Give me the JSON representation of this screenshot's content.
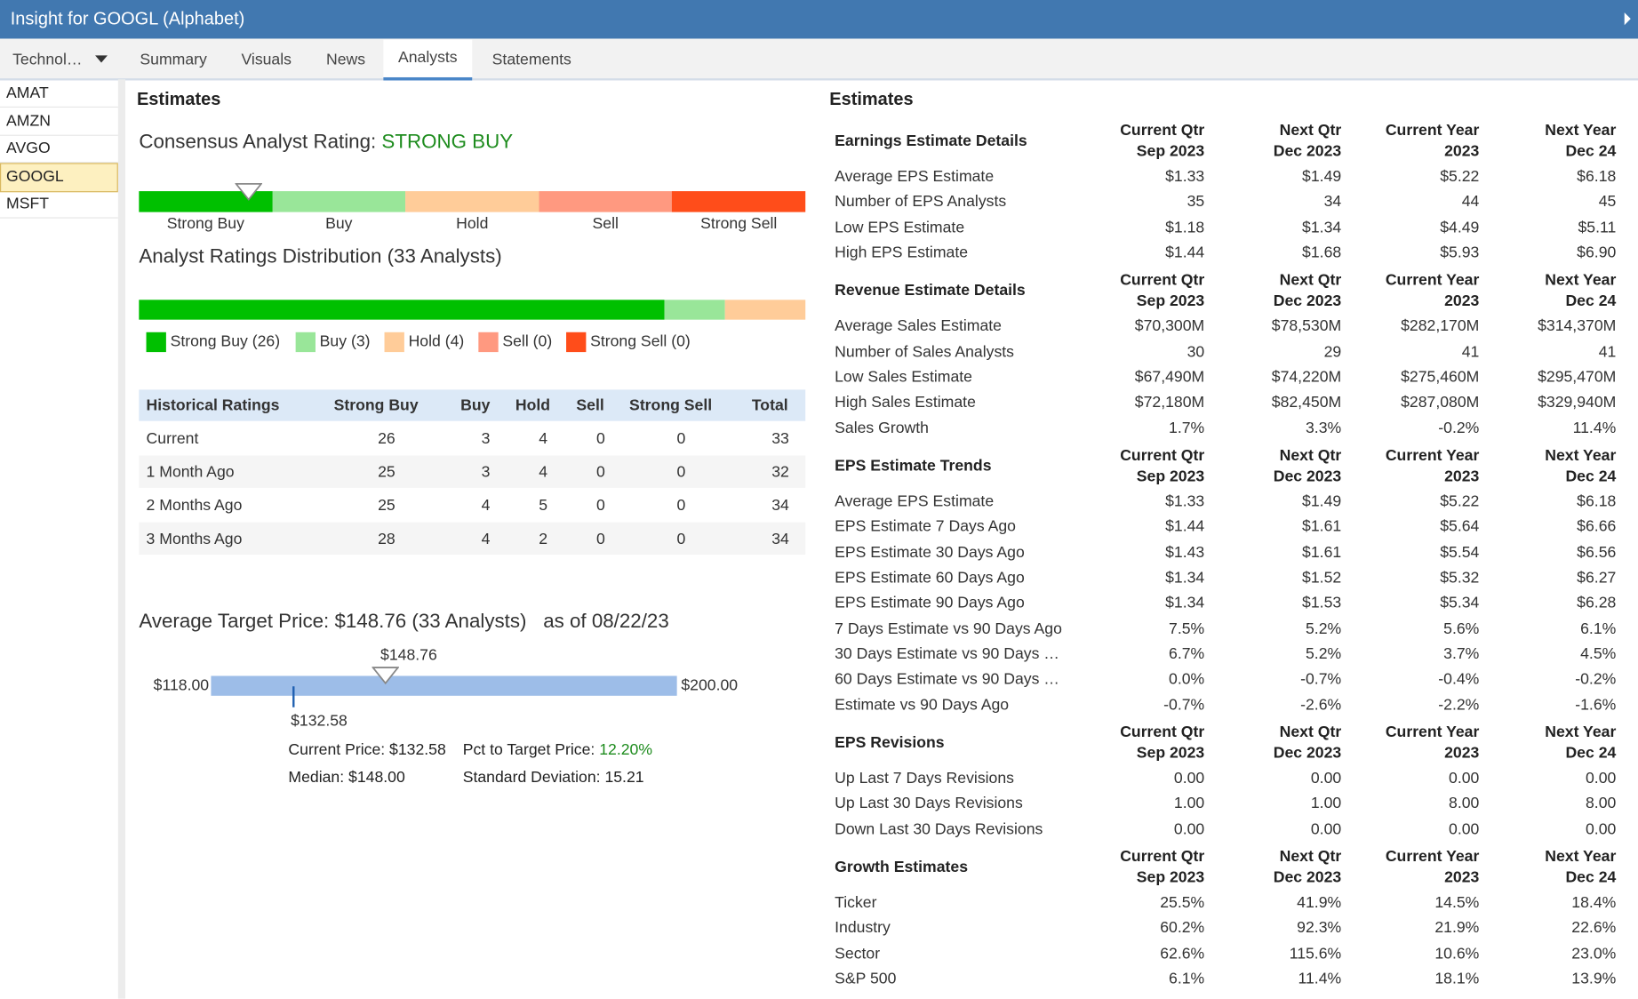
{
  "header": {
    "title": "Insight for GOOGL (Alphabet)"
  },
  "sidebar": {
    "dropdown": "Technol…",
    "tickers": [
      "AMAT",
      "AMZN",
      "AVGO",
      "GOOGL",
      "MSFT"
    ],
    "selected": 3
  },
  "tabs": {
    "items": [
      "Summary",
      "Visuals",
      "News",
      "Analysts",
      "Statements"
    ],
    "active": 3
  },
  "left": {
    "title": "Estimates",
    "consensus": {
      "label": "Consensus Analyst Rating:",
      "value": "STRONG BUY"
    },
    "scale": [
      "Strong Buy",
      "Buy",
      "Hold",
      "Sell",
      "Strong Sell"
    ],
    "colors": [
      "#00c000",
      "#99e699",
      "#ffcc99",
      "#ff9980",
      "#ff4d1a"
    ],
    "distribution": {
      "title": "Analyst Ratings Distribution (33 Analysts)",
      "counts": [
        26,
        3,
        4,
        0,
        0
      ],
      "legend": [
        "Strong Buy (26)",
        "Buy (3)",
        "Hold (4)",
        "Sell (0)",
        "Strong Sell (0)"
      ]
    },
    "historical": {
      "header": [
        "Historical Ratings",
        "Strong Buy",
        "Buy",
        "Hold",
        "Sell",
        "Strong Sell",
        "Total"
      ],
      "rows": [
        [
          "Current",
          "26",
          "3",
          "4",
          "0",
          "0",
          "33"
        ],
        [
          "1 Month Ago",
          "25",
          "3",
          "4",
          "0",
          "0",
          "32"
        ],
        [
          "2 Months Ago",
          "25",
          "4",
          "5",
          "0",
          "0",
          "34"
        ],
        [
          "3 Months Ago",
          "28",
          "4",
          "2",
          "0",
          "0",
          "34"
        ]
      ]
    },
    "target": {
      "title": "Average Target Price: $148.76 (33 Analysts)",
      "as_of": "as of 08/22/23",
      "low": {
        "value": 118,
        "label": "$118.00"
      },
      "high": {
        "value": 200,
        "label": "$200.00"
      },
      "average": {
        "value": 148.76,
        "label": "$148.76"
      },
      "current": {
        "value": 132.58,
        "label": "$132.58"
      },
      "current_price": "Current Price: $132.58",
      "pct_label": "Pct to Target Price:",
      "pct_value": "12.20%",
      "median": "Median: $148.00",
      "std": "Standard Deviation: 15.21"
    }
  },
  "right": {
    "title": "Estimates",
    "sections": [
      {
        "title": "Earnings Estimate Details",
        "columns": [
          [
            "Current Qtr",
            "Sep 2023"
          ],
          [
            "Next Qtr",
            "Dec 2023"
          ],
          [
            "Current Year",
            "2023"
          ],
          [
            "Next Year",
            "Dec 24"
          ]
        ],
        "rows": [
          [
            "Average EPS Estimate",
            "$1.33",
            "$1.49",
            "$5.22",
            "$6.18"
          ],
          [
            "Number of EPS Analysts",
            "35",
            "34",
            "44",
            "45"
          ],
          [
            "Low EPS Estimate",
            "$1.18",
            "$1.34",
            "$4.49",
            "$5.11"
          ],
          [
            "High EPS Estimate",
            "$1.44",
            "$1.68",
            "$5.93",
            "$6.90"
          ]
        ]
      },
      {
        "title": "Revenue Estimate Details",
        "columns": [
          [
            "Current Qtr",
            "Sep 2023"
          ],
          [
            "Next Qtr",
            "Dec 2023"
          ],
          [
            "Current Year",
            "2023"
          ],
          [
            "Next Year",
            "Dec 24"
          ]
        ],
        "rows": [
          [
            "Average Sales Estimate",
            "$70,300M",
            "$78,530M",
            "$282,170M",
            "$314,370M"
          ],
          [
            "Number of Sales Analysts",
            "30",
            "29",
            "41",
            "41"
          ],
          [
            "Low Sales Estimate",
            "$67,490M",
            "$74,220M",
            "$275,460M",
            "$295,470M"
          ],
          [
            "High Sales Estimate",
            "$72,180M",
            "$82,450M",
            "$287,080M",
            "$329,940M"
          ],
          [
            "Sales Growth",
            "1.7%",
            "3.3%",
            "-0.2%",
            "11.4%"
          ]
        ]
      },
      {
        "title": "EPS Estimate Trends",
        "columns": [
          [
            "Current Qtr",
            "Sep 2023"
          ],
          [
            "Next Qtr",
            "Dec 2023"
          ],
          [
            "Current Year",
            "2023"
          ],
          [
            "Next Year",
            "Dec 24"
          ]
        ],
        "rows": [
          [
            "Average EPS Estimate",
            "$1.33",
            "$1.49",
            "$5.22",
            "$6.18"
          ],
          [
            "EPS Estimate 7 Days Ago",
            "$1.44",
            "$1.61",
            "$5.64",
            "$6.66"
          ],
          [
            "EPS Estimate 30 Days Ago",
            "$1.43",
            "$1.61",
            "$5.54",
            "$6.56"
          ],
          [
            "EPS Estimate 60 Days Ago",
            "$1.34",
            "$1.52",
            "$5.32",
            "$6.27"
          ],
          [
            "EPS Estimate 90 Days Ago",
            "$1.34",
            "$1.53",
            "$5.34",
            "$6.28"
          ],
          [
            "7 Days Estimate vs 90 Days Ago",
            "7.5%",
            "5.2%",
            "5.6%",
            "6.1%"
          ],
          [
            "30 Days Estimate vs 90 Days …",
            "6.7%",
            "5.2%",
            "3.7%",
            "4.5%"
          ],
          [
            "60 Days Estimate vs 90 Days …",
            "0.0%",
            "-0.7%",
            "-0.4%",
            "-0.2%"
          ],
          [
            "Estimate vs 90 Days Ago",
            "-0.7%",
            "-2.6%",
            "-2.2%",
            "-1.6%"
          ]
        ]
      },
      {
        "title": "EPS Revisions",
        "columns": [
          [
            "Current Qtr",
            "Sep 2023"
          ],
          [
            "Next Qtr",
            "Dec 2023"
          ],
          [
            "Current Year",
            "2023"
          ],
          [
            "Next Year",
            "Dec 24"
          ]
        ],
        "rows": [
          [
            "Up Last 7 Days Revisions",
            "0.00",
            "0.00",
            "0.00",
            "0.00"
          ],
          [
            "Up Last 30 Days Revisions",
            "1.00",
            "1.00",
            "8.00",
            "8.00"
          ],
          [
            "Down Last 30 Days Revisions",
            "0.00",
            "0.00",
            "0.00",
            "0.00"
          ]
        ]
      },
      {
        "title": "Growth Estimates",
        "columns": [
          [
            "Current Qtr",
            "Sep 2023"
          ],
          [
            "Next Qtr",
            "Dec 2023"
          ],
          [
            "Current Year",
            "2023"
          ],
          [
            "Next Year",
            "Dec 24"
          ]
        ],
        "rows": [
          [
            "Ticker",
            "25.5%",
            "41.9%",
            "14.5%",
            "18.4%"
          ],
          [
            "Industry",
            "60.2%",
            "92.3%",
            "21.9%",
            "22.6%"
          ],
          [
            "Sector",
            "62.6%",
            "115.6%",
            "10.6%",
            "23.0%"
          ],
          [
            "S&P 500",
            "6.1%",
            "11.4%",
            "18.1%",
            "13.9%"
          ]
        ]
      }
    ]
  }
}
